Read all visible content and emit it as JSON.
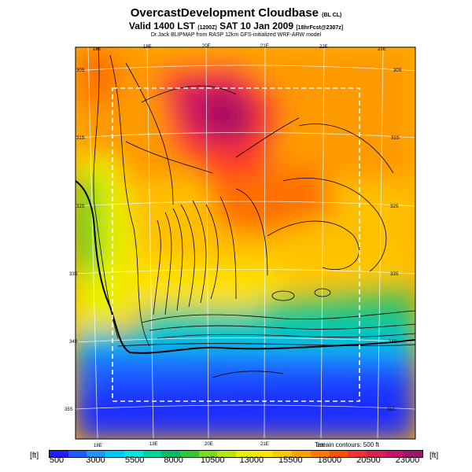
{
  "title": {
    "main": "OvercastDevelopment Cloudbase",
    "main_suffix": "(BL CL)",
    "valid_prefix": "Valid 1400 LST",
    "valid_code": "(1200Z)",
    "valid_date": "SAT 10 Jan 2009",
    "valid_suffix": "[18hrFcst@2307z]",
    "source": "Dr.Jack BLIPMAP from RASP 12km GFS-initialized WRF-ARW model"
  },
  "map": {
    "lon_labels_top": [
      "18E",
      "19E",
      "20E",
      "21E",
      "22E",
      "23E"
    ],
    "lon_labels_bottom": [
      "18E",
      "19E",
      "20E",
      "21E",
      "22E"
    ],
    "lat_labels_left": [
      "30S",
      "31S",
      "32S",
      "33S",
      "34S",
      "35S"
    ],
    "lat_labels_right": [
      "30S",
      "31S",
      "32S",
      "33S",
      "34S",
      "35S"
    ],
    "terrain_note": "Terrain contours: 500 ft"
  },
  "colorbar": {
    "unit_left": "[ft]",
    "unit_right": "[ft]",
    "labels": [
      "500",
      "3000",
      "5500",
      "8000",
      "10500",
      "13000",
      "15500",
      "18000",
      "20500",
      "23000"
    ],
    "colors": [
      "#1e1eff",
      "#1e5aff",
      "#1e96ff",
      "#00c8ff",
      "#00e6e6",
      "#00d2a0",
      "#00be64",
      "#32c832",
      "#78dc1e",
      "#b4e614",
      "#e6f00a",
      "#ffe600",
      "#ffc800",
      "#ffa000",
      "#ff7800",
      "#ff5000",
      "#f03232",
      "#dc1e50",
      "#c8146e",
      "#a0146e"
    ]
  }
}
